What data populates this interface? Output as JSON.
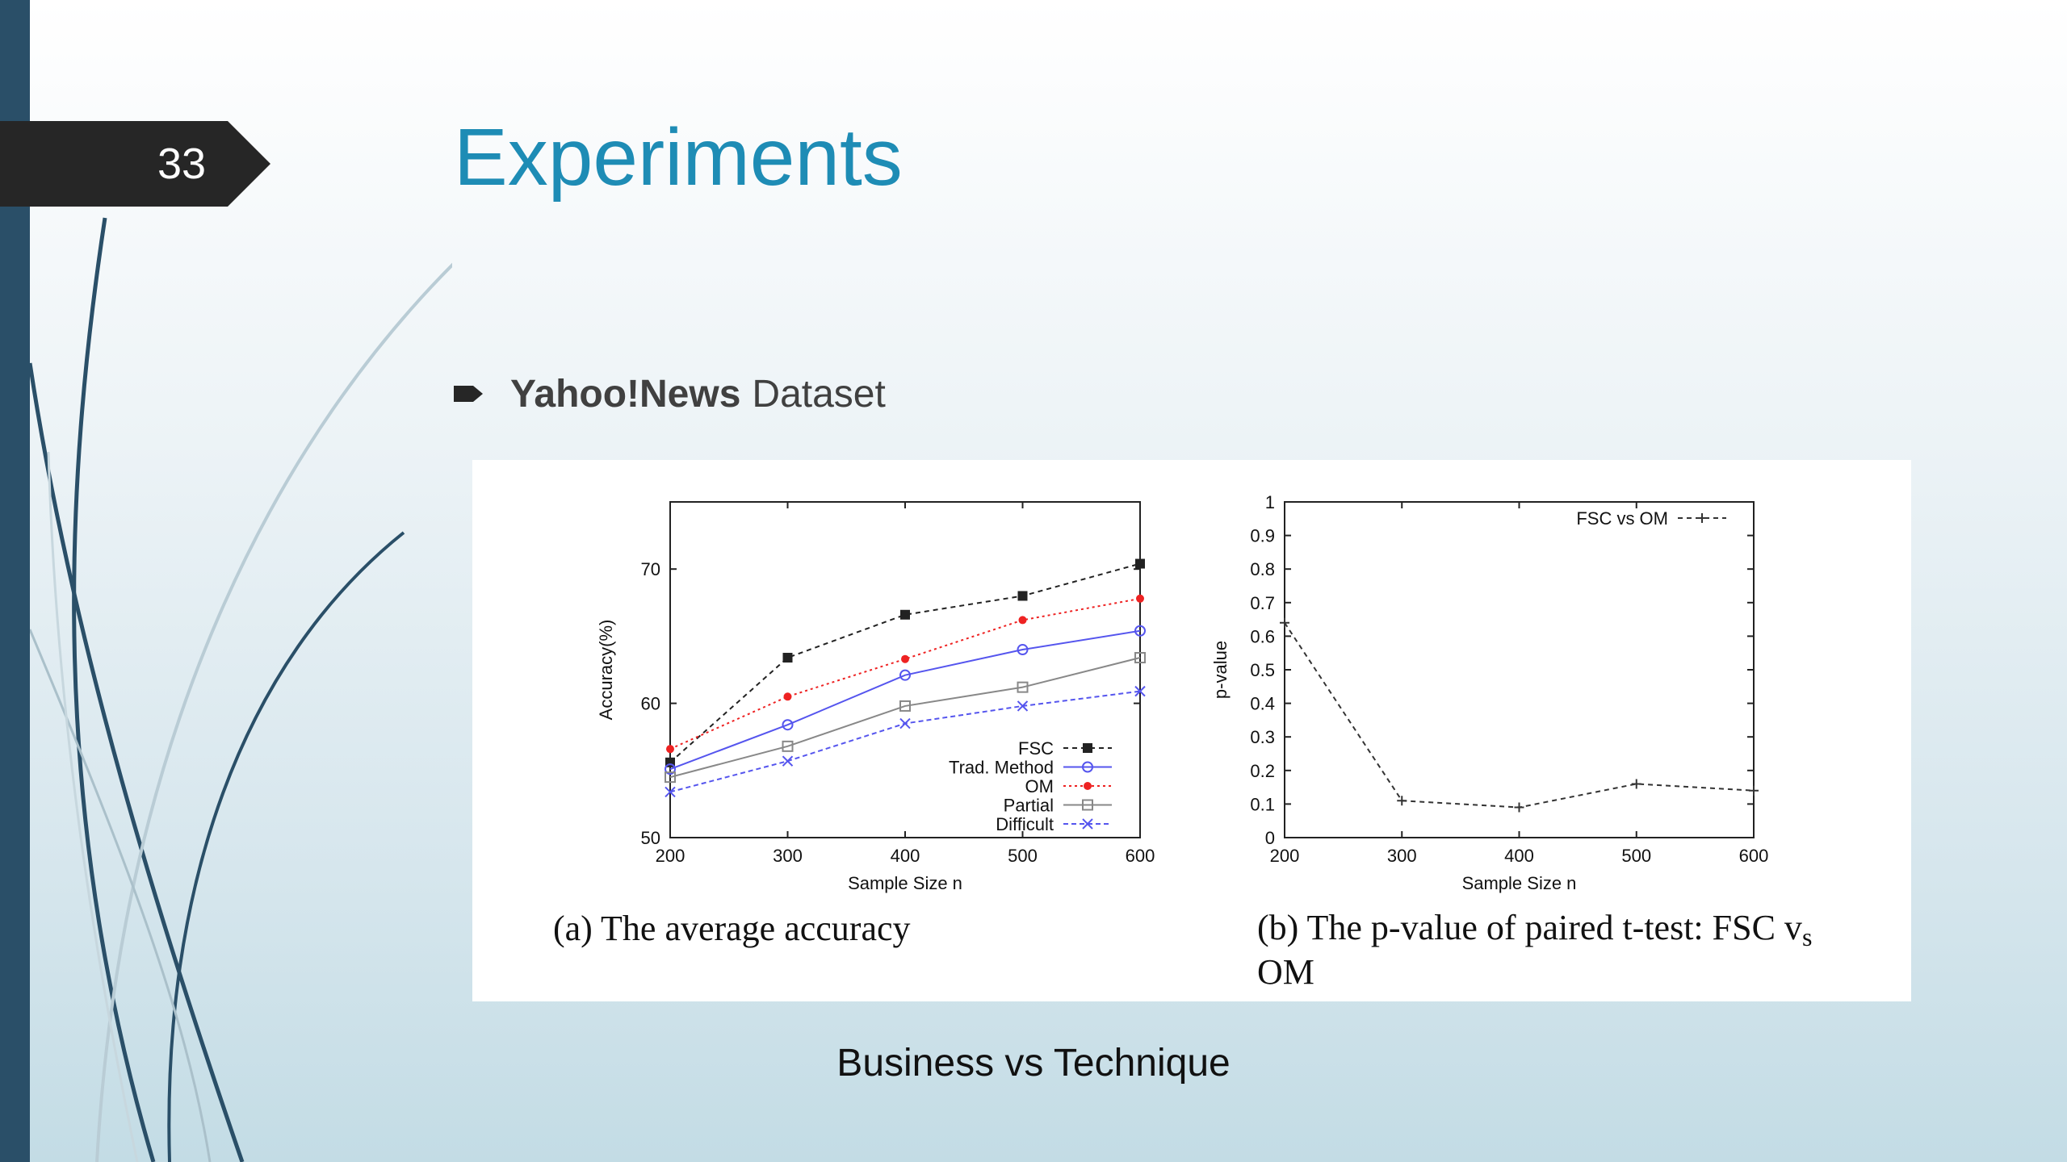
{
  "slide": {
    "number": "33",
    "title": "Experiments",
    "bullet_bold": "Yahoo!News",
    "bullet_rest": "Dataset",
    "footer": "Business vs Technique",
    "colors": {
      "title": "#1e8cb5",
      "left_bar": "#2a4f68",
      "tab": "#262626"
    },
    "bullet_icon": "arrow-bullet-icon"
  },
  "captions": {
    "a": "(a) The average accuracy",
    "b_main": "(b) The p-value of paired t-test:  FSC v",
    "b_sub": "s",
    "b_end": "OM"
  },
  "chart_data": [
    {
      "type": "line",
      "xlabel": "Sample Size n",
      "ylabel": "Accuracy(%)",
      "xlim": [
        200,
        600
      ],
      "ylim": [
        50,
        75
      ],
      "xticks": [
        200,
        300,
        400,
        500,
        600
      ],
      "yticks": [
        50,
        60,
        70
      ],
      "legend_position": "bottom-right",
      "x": [
        200,
        300,
        400,
        500,
        600
      ],
      "series": [
        {
          "name": "FSC",
          "values": [
            55.6,
            63.4,
            66.6,
            68.0,
            70.4
          ],
          "color": "#222222",
          "marker": "filled-square",
          "dash": "6,5"
        },
        {
          "name": "Trad. Method",
          "values": [
            55.1,
            58.4,
            62.1,
            64.0,
            65.4
          ],
          "color": "#5555ee",
          "marker": "circle",
          "dash": ""
        },
        {
          "name": "OM",
          "values": [
            56.6,
            60.5,
            63.3,
            66.2,
            67.8
          ],
          "color": "#ee2222",
          "marker": "filled-circle",
          "dash": "3,4"
        },
        {
          "name": "Partial",
          "values": [
            54.5,
            56.8,
            59.8,
            61.2,
            63.4
          ],
          "color": "#888888",
          "marker": "square",
          "dash": ""
        },
        {
          "name": "Difficult",
          "values": [
            53.4,
            55.7,
            58.5,
            59.8,
            60.9
          ],
          "color": "#5555ee",
          "marker": "x",
          "dash": "6,4"
        }
      ]
    },
    {
      "type": "line",
      "xlabel": "Sample Size n",
      "ylabel": "p-value",
      "xlim": [
        200,
        600
      ],
      "ylim": [
        0,
        1
      ],
      "xticks": [
        200,
        300,
        400,
        500,
        600
      ],
      "yticks": [
        0,
        0.1,
        0.2,
        0.3,
        0.4,
        0.5,
        0.6,
        0.7,
        0.8,
        0.9,
        1
      ],
      "legend_position": "top-right",
      "x": [
        200,
        300,
        400,
        500,
        600
      ],
      "series": [
        {
          "name": "FSC vs OM",
          "values": [
            0.64,
            0.11,
            0.09,
            0.16,
            0.14
          ],
          "color": "#333333",
          "marker": "plus",
          "dash": "6,5"
        }
      ]
    }
  ]
}
